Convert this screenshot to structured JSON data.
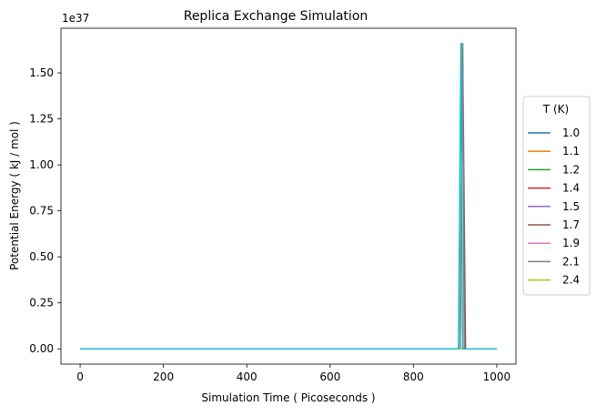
{
  "chart_data": {
    "type": "line",
    "title": "Replica Exchange Simulation",
    "xlabel": "Simulation Time ( Picoseconds )",
    "ylabel": "Potential Energy ( kJ / mol )",
    "offset_text": "1e37",
    "xlim": [
      -46,
      1046
    ],
    "ylim": [
      -0.083,
      1.743
    ],
    "x_ticks": [
      0,
      200,
      400,
      600,
      800,
      1000
    ],
    "y_ticks": [
      0.0,
      0.25,
      0.5,
      0.75,
      1.0,
      1.25,
      1.5
    ],
    "x_tick_labels": [
      "0",
      "200",
      "400",
      "600",
      "800",
      "1000"
    ],
    "y_tick_labels": [
      "0.00",
      "0.25",
      "0.50",
      "0.75",
      "1.00",
      "1.25",
      "1.50"
    ],
    "grid": false,
    "legend": {
      "title": "T (K)",
      "placement": "center-right-outside"
    },
    "series": [
      {
        "name": "1.0",
        "color": "#1f77b4",
        "points": [
          [
            0,
            0
          ],
          [
            1000,
            0
          ]
        ]
      },
      {
        "name": "1.1",
        "color": "#ff7f0e",
        "points": [
          [
            0,
            0
          ],
          [
            1000,
            0
          ]
        ]
      },
      {
        "name": "1.2",
        "color": "#2ca02c",
        "points": [
          [
            0,
            0
          ],
          [
            1000,
            0
          ]
        ]
      },
      {
        "name": "1.4",
        "color": "#d62728",
        "points": [
          [
            0,
            0
          ],
          [
            1000,
            0
          ]
        ]
      },
      {
        "name": "1.5",
        "color": "#9467bd",
        "points": [
          [
            0,
            0
          ],
          [
            1000,
            0
          ]
        ]
      },
      {
        "name": "1.7",
        "color": "#8c564b",
        "points": [
          [
            0,
            0
          ],
          [
            912,
            0
          ],
          [
            918,
            1.66
          ],
          [
            925,
            0
          ],
          [
            1000,
            0
          ]
        ]
      },
      {
        "name": "1.9",
        "color": "#e377c2",
        "points": [
          [
            0,
            0
          ],
          [
            1000,
            0
          ]
        ]
      },
      {
        "name": "2.1",
        "color": "#7f7f7f",
        "points": [
          [
            0,
            0
          ],
          [
            912,
            0
          ],
          [
            918,
            1.66
          ],
          [
            922,
            0
          ],
          [
            1000,
            0
          ]
        ]
      },
      {
        "name": "2.4",
        "color": "#bcbd22",
        "points": [
          [
            0,
            0
          ],
          [
            1000,
            0
          ]
        ]
      },
      {
        "name": "",
        "color": "#17becf",
        "points": [
          [
            0,
            0
          ],
          [
            908,
            0
          ],
          [
            914,
            1.66
          ],
          [
            918,
            0
          ],
          [
            1000,
            0
          ]
        ]
      }
    ]
  }
}
